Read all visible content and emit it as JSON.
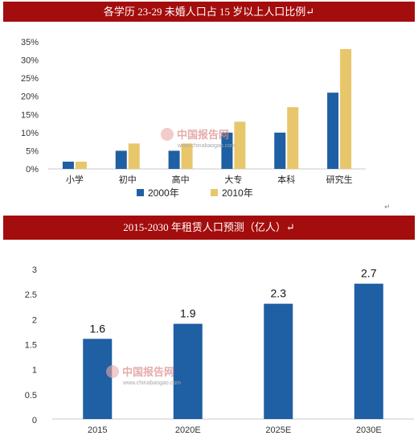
{
  "charts": [
    {
      "title": "各学历 23-29 未婚人口占 15 岁以上人口比例",
      "title_mark": "↵",
      "watermark": {
        "brand": "中国报告网",
        "url": "www.chinabaogao.com"
      }
    },
    {
      "title": "2015-2030 年租赁人口预测（亿人）",
      "title_mark": "↵",
      "watermark": {
        "brand": "中国报告网",
        "url": "www.chinabaogao.com"
      }
    }
  ],
  "page_marks": {
    "return_mark": "↵"
  },
  "chart_data": [
    {
      "type": "bar",
      "title": "各学历 23-29 未婚人口占 15 岁以上人口比例",
      "categories": [
        "小学",
        "初中",
        "高中",
        "大专",
        "本科",
        "研究生"
      ],
      "series": [
        {
          "name": "2000年",
          "values": [
            2,
            5,
            5,
            10,
            10,
            21
          ],
          "color": "#1f5fa3"
        },
        {
          "name": "2010年",
          "values": [
            2,
            7,
            7,
            13,
            17,
            33
          ],
          "color": "#e8c66b"
        }
      ],
      "yticks": [
        "0%",
        "5%",
        "10%",
        "15%",
        "20%",
        "25%",
        "30%",
        "35%"
      ],
      "ylim": [
        0,
        35
      ],
      "grid": false,
      "legend": "bottom"
    },
    {
      "type": "bar",
      "title": "2015-2030 年租赁人口预测（亿人）",
      "categories": [
        "2015",
        "2020E",
        "2025E",
        "2030E"
      ],
      "values": [
        1.6,
        1.9,
        2.3,
        2.7
      ],
      "data_labels": [
        "1.6",
        "1.9",
        "2.3",
        "2.7"
      ],
      "color": "#1f5fa3",
      "yticks": [
        "0",
        "0.5",
        "1",
        "1.5",
        "2",
        "2.5",
        "3"
      ],
      "ylim": [
        0,
        3
      ],
      "grid": false,
      "legend": "none"
    }
  ]
}
